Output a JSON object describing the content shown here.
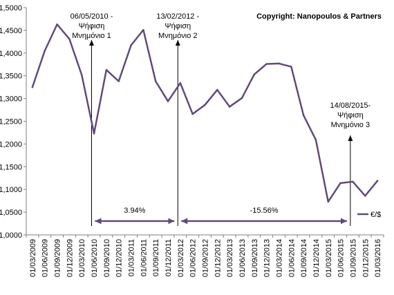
{
  "chart_data": {
    "type": "line",
    "title": "",
    "xlabel": "",
    "ylabel": "",
    "ylim": [
      1.0,
      1.5
    ],
    "yticks": [
      "1,0000",
      "1,0500",
      "1,1000",
      "1,1500",
      "1,2000",
      "1,2500",
      "1,3000",
      "1,3500",
      "1,4000",
      "1,4500",
      "1,5000"
    ],
    "categories": [
      "01/03/2009",
      "01/06/2009",
      "01/09/2009",
      "01/12/2009",
      "01/03/2010",
      "01/06/2010",
      "01/09/2010",
      "01/12/2010",
      "01/03/2011",
      "01/06/2011",
      "01/09/2011",
      "01/12/2011",
      "01/03/2012",
      "01/06/2012",
      "01/09/2012",
      "01/12/2012",
      "01/03/2013",
      "01/06/2013",
      "01/09/2013",
      "01/12/2013",
      "01/03/2014",
      "01/06/2014",
      "01/09/2014",
      "01/12/2014",
      "01/03/2015",
      "01/06/2015",
      "01/09/2015",
      "01/12/2015",
      "01/03/2016"
    ],
    "series": [
      {
        "name": "€/$",
        "color": "#604a7b",
        "values": [
          1.325,
          1.405,
          1.463,
          1.431,
          1.352,
          1.223,
          1.363,
          1.338,
          1.417,
          1.451,
          1.338,
          1.294,
          1.334,
          1.266,
          1.286,
          1.319,
          1.282,
          1.301,
          1.353,
          1.376,
          1.377,
          1.37,
          1.263,
          1.209,
          1.073,
          1.114,
          1.117,
          1.086,
          1.119
        ]
      }
    ],
    "legend": {
      "position": "right",
      "label": "€/$"
    },
    "grid": false,
    "annotations": [
      {
        "lines": [
          "06/05/2010 -",
          "Ψήφιση",
          "Μνημόνιο 1"
        ],
        "x": "01/06/2010"
      },
      {
        "lines": [
          "13/02/2012 -",
          "Ψήφιση",
          "Μνημόνιο 2"
        ],
        "x": "01/03/2012"
      },
      {
        "lines": [
          "14/08/2015-",
          "Ψήφιση",
          "Μνημόνιο 3"
        ],
        "x": "01/09/2015"
      }
    ],
    "ranges": [
      {
        "label": "3.94%",
        "from": "01/06/2010",
        "to": "01/03/2012"
      },
      {
        "label": "-15.56%",
        "from": "01/03/2012",
        "to": "01/09/2015"
      }
    ],
    "arrow_color": "#000000",
    "range_color": "#604a7b",
    "copyright": "Copyright:  Nanopoulos  & Partners"
  }
}
